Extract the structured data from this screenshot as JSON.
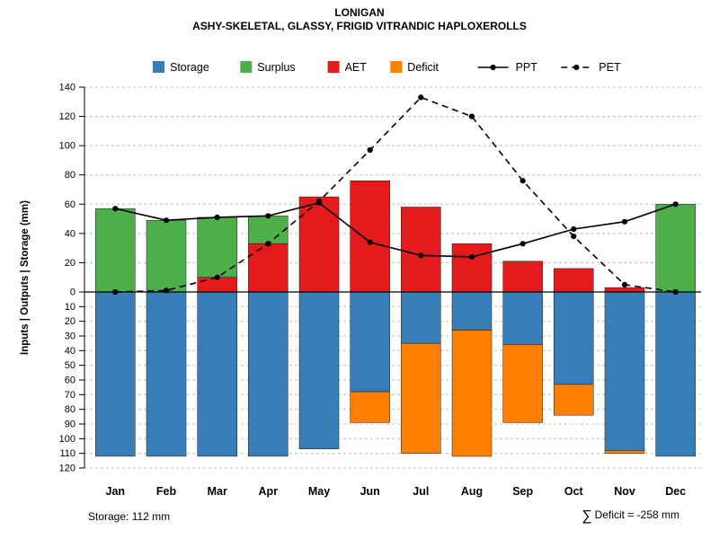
{
  "title": "LONIGAN",
  "subtitle": "ASHY-SKELETAL, GLASSY, FRIGID VITRANDIC HAPLOXEROLLS",
  "footer": {
    "storage_text": "Storage: 112 mm",
    "sum_symbol": "∑",
    "deficit_text": "Deficit = -258 mm"
  },
  "chart_data": {
    "type": "bar",
    "title": "LONIGAN",
    "subtitle": "ASHY-SKELETAL, GLASSY, FRIGID VITRANDIC HAPLOXEROLLS",
    "ylabel": "Inputs | Outputs | Storage    (mm)",
    "categories": [
      "Jan",
      "Feb",
      "Mar",
      "Apr",
      "May",
      "Jun",
      "Jul",
      "Aug",
      "Sep",
      "Oct",
      "Nov",
      "Dec"
    ],
    "y_axis": {
      "upper_max": 140,
      "lower_max": 120,
      "upper_ticks": [
        0,
        20,
        40,
        60,
        80,
        100,
        120,
        140
      ],
      "lower_ticks": [
        10,
        20,
        30,
        40,
        50,
        60,
        70,
        80,
        90,
        100,
        110,
        120
      ]
    },
    "grid": true,
    "legend_position": "top",
    "legend": [
      "Storage",
      "Surplus",
      "AET",
      "Deficit",
      "PPT",
      "PET"
    ],
    "series": [
      {
        "name": "Storage",
        "kind": "bar_below",
        "color": "#377eb8",
        "values": [
          112,
          112,
          112,
          112,
          107,
          68,
          35,
          26,
          36,
          63,
          108,
          112
        ]
      },
      {
        "name": "Surplus",
        "kind": "bar_above_top",
        "color": "#4daf4a",
        "values": [
          57,
          49,
          41,
          19,
          0,
          0,
          0,
          0,
          0,
          0,
          0,
          60
        ]
      },
      {
        "name": "AET",
        "kind": "bar_above_base",
        "color": "#e41a1c",
        "values": [
          0,
          0,
          10,
          33,
          65,
          76,
          58,
          33,
          21,
          16,
          3,
          0
        ]
      },
      {
        "name": "Deficit",
        "kind": "bar_below_stacked",
        "color": "#ff7f00",
        "values": [
          0,
          0,
          0,
          0,
          0,
          21,
          75,
          86,
          53,
          21,
          2,
          0
        ]
      },
      {
        "name": "PPT",
        "kind": "line",
        "dash": "solid",
        "color": "#000000",
        "values": [
          57,
          49,
          51,
          52,
          61,
          34,
          25,
          24,
          33,
          43,
          48,
          60
        ]
      },
      {
        "name": "PET",
        "kind": "line",
        "dash": "dashed",
        "color": "#000000",
        "values": [
          0,
          1,
          10,
          33,
          62,
          97,
          133,
          120,
          76,
          38,
          5,
          0
        ]
      }
    ],
    "summary": {
      "storage_mm": 112,
      "total_deficit_mm": -258
    }
  },
  "colors": {
    "storage": "#377eb8",
    "surplus": "#4daf4a",
    "aet": "#e41a1c",
    "deficit": "#ff7f00",
    "line": "#000000",
    "grid": "#bdbdbd"
  }
}
